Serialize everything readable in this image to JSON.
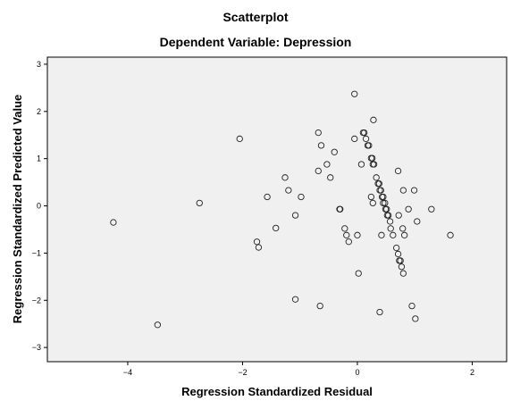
{
  "chart_data": {
    "type": "scatter",
    "title": "Scatterplot",
    "subtitle": "Dependent Variable: Depression",
    "xlabel": "Regression Standardized Residual",
    "ylabel": "Regression Standardized Predicted Value",
    "xlim": [
      -5.4,
      2.6
    ],
    "ylim": [
      -3.3,
      3.15
    ],
    "xticks": [
      -4,
      -2,
      0,
      2
    ],
    "yticks": [
      -3,
      -2,
      -1,
      0,
      1,
      2,
      3
    ],
    "grid": false,
    "legend": "none",
    "colors": {
      "plot_background": "#f0f0f0",
      "marker_stroke": "#222222",
      "frame": "#000000"
    },
    "points": [
      {
        "x": -4.25,
        "y": -0.35
      },
      {
        "x": -3.48,
        "y": -2.52
      },
      {
        "x": -2.75,
        "y": 0.06
      },
      {
        "x": -2.05,
        "y": 1.42
      },
      {
        "x": -1.75,
        "y": -0.76
      },
      {
        "x": -1.72,
        "y": -0.88
      },
      {
        "x": -1.57,
        "y": 0.19
      },
      {
        "x": -1.42,
        "y": -0.47
      },
      {
        "x": -1.26,
        "y": 0.6
      },
      {
        "x": -1.2,
        "y": 0.33
      },
      {
        "x": -1.08,
        "y": -0.2
      },
      {
        "x": -0.98,
        "y": 0.19
      },
      {
        "x": -1.08,
        "y": -1.98
      },
      {
        "x": -0.68,
        "y": 1.55
      },
      {
        "x": -0.63,
        "y": 1.28
      },
      {
        "x": -0.68,
        "y": 0.74
      },
      {
        "x": -0.53,
        "y": 0.88
      },
      {
        "x": -0.47,
        "y": 0.6
      },
      {
        "x": -0.4,
        "y": 1.14
      },
      {
        "x": -0.3,
        "y": -0.07
      },
      {
        "x": -0.31,
        "y": -0.07
      },
      {
        "x": -0.22,
        "y": -0.48
      },
      {
        "x": -0.19,
        "y": -0.62
      },
      {
        "x": -0.15,
        "y": -0.76
      },
      {
        "x": -0.65,
        "y": -2.12
      },
      {
        "x": -0.05,
        "y": 2.37
      },
      {
        "x": -0.05,
        "y": 1.42
      },
      {
        "x": 0.02,
        "y": -1.43
      },
      {
        "x": 0.0,
        "y": -0.62
      },
      {
        "x": 0.07,
        "y": 0.88
      },
      {
        "x": 0.1,
        "y": 1.55
      },
      {
        "x": 0.12,
        "y": 1.55
      },
      {
        "x": 0.15,
        "y": 1.42
      },
      {
        "x": 0.18,
        "y": 1.28
      },
      {
        "x": 0.2,
        "y": 1.28
      },
      {
        "x": 0.24,
        "y": 1.01
      },
      {
        "x": 0.26,
        "y": 1.01
      },
      {
        "x": 0.27,
        "y": 0.88
      },
      {
        "x": 0.29,
        "y": 0.88
      },
      {
        "x": 0.28,
        "y": 1.82
      },
      {
        "x": 0.24,
        "y": 0.19
      },
      {
        "x": 0.27,
        "y": 0.06
      },
      {
        "x": 0.33,
        "y": 0.6
      },
      {
        "x": 0.36,
        "y": 0.47
      },
      {
        "x": 0.38,
        "y": 0.47
      },
      {
        "x": 0.39,
        "y": 0.33
      },
      {
        "x": 0.41,
        "y": 0.33
      },
      {
        "x": 0.43,
        "y": 0.19
      },
      {
        "x": 0.45,
        "y": 0.19
      },
      {
        "x": 0.45,
        "y": 0.06
      },
      {
        "x": 0.48,
        "y": 0.06
      },
      {
        "x": 0.49,
        "y": -0.07
      },
      {
        "x": 0.51,
        "y": -0.07
      },
      {
        "x": 0.52,
        "y": -0.2
      },
      {
        "x": 0.54,
        "y": -0.2
      },
      {
        "x": 0.57,
        "y": -0.33
      },
      {
        "x": 0.58,
        "y": -0.48
      },
      {
        "x": 0.62,
        "y": -0.62
      },
      {
        "x": 0.42,
        "y": -0.62
      },
      {
        "x": 0.39,
        "y": -2.25
      },
      {
        "x": 0.68,
        "y": -0.89
      },
      {
        "x": 0.71,
        "y": -1.02
      },
      {
        "x": 0.73,
        "y": -1.16
      },
      {
        "x": 0.75,
        "y": -1.16
      },
      {
        "x": 0.77,
        "y": -1.29
      },
      {
        "x": 0.8,
        "y": -1.43
      },
      {
        "x": 0.71,
        "y": 0.74
      },
      {
        "x": 0.8,
        "y": 0.33
      },
      {
        "x": 0.72,
        "y": -0.2
      },
      {
        "x": 0.79,
        "y": -0.48
      },
      {
        "x": 0.82,
        "y": -0.62
      },
      {
        "x": 0.89,
        "y": -0.07
      },
      {
        "x": 0.99,
        "y": 0.33
      },
      {
        "x": 1.04,
        "y": -0.33
      },
      {
        "x": 0.95,
        "y": -2.12
      },
      {
        "x": 1.01,
        "y": -2.39
      },
      {
        "x": 1.29,
        "y": -0.07
      },
      {
        "x": 1.62,
        "y": -0.62
      }
    ]
  }
}
